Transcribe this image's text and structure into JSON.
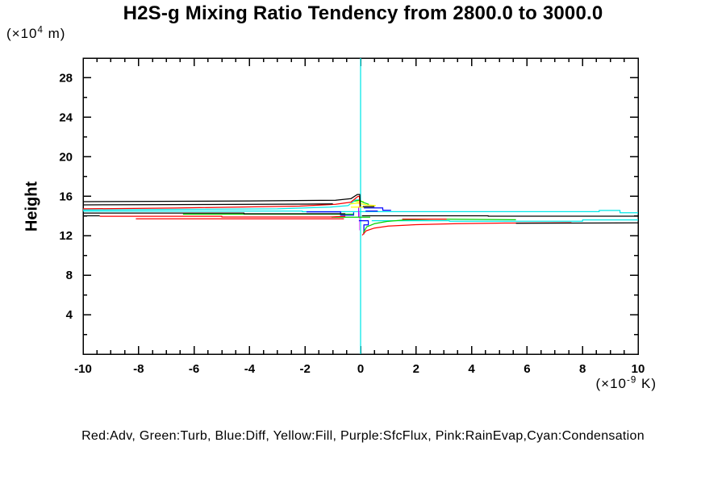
{
  "title": "H2S-g Mixing Ratio Tendency from 2800.0 to 3000.0",
  "y_unit": {
    "pre": "(×10",
    "sup": "4",
    "post": " m)"
  },
  "x_unit": {
    "pre": "(×10",
    "sup": "-9",
    "post": " K)"
  },
  "legend": "Red:Adv, Green:Turb, Blue:Diff, Yellow:Fill, Purple:SfcFlux, Pink:RainEvap,Cyan:Condensation",
  "chart_data": {
    "type": "line",
    "title": "H2S-g Mixing Ratio Tendency from 2800.0 to 3000.0",
    "x_axis": {
      "unit": "×10⁻⁹ K",
      "range": [
        -10,
        10
      ],
      "major_ticks": [
        -10,
        -8,
        -6,
        -4,
        -2,
        0,
        2,
        4,
        6,
        8,
        10
      ],
      "minor_step": 0.5
    },
    "y_axis": {
      "label": "Height",
      "unit": "×10⁴ m",
      "range": [
        0,
        30
      ],
      "major_ticks": [
        4,
        8,
        12,
        16,
        20,
        24,
        28
      ],
      "minor_step": 2
    },
    "grid": "off",
    "legend_position": "bottom",
    "zero_reference_x": 0,
    "series": [
      {
        "name": "condensation",
        "legend": "Cyan:Condensation",
        "color": "#00e8e8",
        "segments": [
          [
            [
              0,
              0
            ],
            [
              0,
              30
            ]
          ],
          [
            [
              -10,
              14.62
            ],
            [
              -3.0,
              14.72
            ],
            [
              -1.1,
              14.9
            ],
            [
              -0.45,
              15.05
            ],
            [
              -0.18,
              15.62
            ],
            [
              -0.05,
              15.62
            ]
          ],
          [
            [
              -10,
              14.5
            ],
            [
              -2.1,
              14.5
            ],
            [
              -2.1,
              14.44
            ],
            [
              8.6,
              14.44
            ],
            [
              8.6,
              14.56
            ],
            [
              9.35,
              14.56
            ],
            [
              9.35,
              14.33
            ],
            [
              10,
              14.33
            ]
          ],
          [
            [
              0.4,
              13.52
            ],
            [
              3.2,
              13.52
            ],
            [
              3.2,
              13.46
            ],
            [
              8.0,
              13.46
            ],
            [
              8.0,
              13.6
            ],
            [
              10,
              13.6
            ]
          ]
        ]
      },
      {
        "name": "rainevap",
        "legend": "Pink:RainEvap",
        "color": "#ff80ff",
        "segments": [
          [
            [
              -0.04,
              14.35
            ],
            [
              -0.04,
              12.55
            ]
          ]
        ]
      },
      {
        "name": "sfcflux",
        "legend": "Purple:SfcFlux",
        "color": "#aa00ff",
        "segments": [
          [
            [
              -0.07,
              14.92
            ],
            [
              -0.07,
              13.9
            ]
          ]
        ]
      },
      {
        "name": "fill",
        "legend": "Yellow:Fill",
        "color": "#ffff00",
        "segments": [
          [
            [
              -0.38,
              15.22
            ],
            [
              -0.1,
              15.3
            ],
            [
              0.22,
              15.12
            ],
            [
              0.55,
              15.05
            ]
          ],
          [
            [
              -0.35,
              14.9
            ],
            [
              0.45,
              14.9
            ]
          ],
          [
            [
              -0.15,
              15.45
            ],
            [
              0.12,
              15.45
            ]
          ]
        ]
      },
      {
        "name": "diff",
        "legend": "Blue:Diff",
        "color": "#0000ff",
        "segments": [
          [
            [
              -1.95,
              14.42
            ],
            [
              -0.72,
              14.42
            ],
            [
              -0.72,
              14.08
            ],
            [
              -0.25,
              14.08
            ],
            [
              -0.25,
              14.36
            ]
          ],
          [
            [
              0.12,
              14.82
            ],
            [
              0.8,
              14.82
            ],
            [
              0.8,
              14.58
            ],
            [
              1.1,
              14.58
            ]
          ],
          [
            [
              0.18,
              14.5
            ],
            [
              0.62,
              14.5
            ]
          ],
          [
            [
              -0.06,
              13.52
            ],
            [
              0.28,
              13.52
            ],
            [
              0.28,
              13.1
            ],
            [
              0.12,
              13.1
            ],
            [
              0.12,
              12.15
            ]
          ]
        ]
      },
      {
        "name": "turb",
        "legend": "Green:Turb",
        "color": "#00d400",
        "segments": [
          [
            [
              -6.4,
              14.18
            ],
            [
              -0.25,
              14.18
            ]
          ],
          [
            [
              -1.05,
              13.87
            ],
            [
              0.35,
              13.87
            ]
          ],
          [
            [
              -0.22,
              15.5
            ],
            [
              -0.05,
              15.6
            ],
            [
              0.12,
              15.35
            ],
            [
              0.3,
              15.18
            ]
          ],
          [
            [
              0.1,
              12.3
            ],
            [
              0.22,
              12.9
            ],
            [
              0.5,
              13.22
            ],
            [
              0.95,
              13.45
            ],
            [
              1.6,
              13.6
            ],
            [
              2.8,
              13.68
            ],
            [
              5.6,
              13.62
            ]
          ]
        ]
      },
      {
        "name": "adv",
        "legend": "Red:Adv",
        "color": "#ff0000",
        "segments": [
          [
            [
              -10,
              14.72
            ],
            [
              -6.7,
              14.8
            ],
            [
              -2.2,
              15.0
            ],
            [
              -0.9,
              15.18
            ],
            [
              -0.35,
              15.4
            ],
            [
              -0.1,
              15.98
            ],
            [
              -0.04,
              15.98
            ],
            [
              -0.02,
              14.9
            ]
          ],
          [
            [
              -9.4,
              13.97
            ],
            [
              -5.0,
              13.97
            ],
            [
              -5.0,
              13.9
            ],
            [
              -1.1,
              13.9
            ],
            [
              -0.55,
              13.97
            ]
          ],
          [
            [
              -8.1,
              13.72
            ],
            [
              -0.6,
              13.72
            ]
          ],
          [
            [
              0.06,
              12.05
            ],
            [
              0.2,
              12.5
            ],
            [
              0.5,
              12.78
            ],
            [
              1.0,
              12.97
            ],
            [
              2.0,
              13.12
            ],
            [
              3.5,
              13.22
            ],
            [
              5.2,
              13.28
            ],
            [
              7.6,
              13.32
            ]
          ],
          [
            [
              1.5,
              13.68
            ],
            [
              3.1,
              13.68
            ]
          ]
        ]
      },
      {
        "name": "total-unlabeled",
        "legend": "",
        "color": "#000000",
        "segments": [
          [
            [
              -10,
              15.45
            ],
            [
              -4,
              15.52
            ],
            [
              -0.9,
              15.6
            ],
            [
              -0.35,
              15.75
            ],
            [
              -0.12,
              16.18
            ],
            [
              -0.03,
              16.18
            ],
            [
              -0.01,
              14.98
            ]
          ],
          [
            [
              -10,
              15.12
            ],
            [
              -5.5,
              15.16
            ],
            [
              -1.0,
              15.22
            ]
          ],
          [
            [
              -10,
              14.3
            ],
            [
              -4.2,
              14.3
            ],
            [
              -4.2,
              14.22
            ],
            [
              -0.55,
              14.22
            ]
          ],
          [
            [
              -10,
              14.02
            ],
            [
              -9.4,
              14.02
            ]
          ],
          [
            [
              0.05,
              14.02
            ],
            [
              4.6,
              14.02
            ],
            [
              4.6,
              13.98
            ],
            [
              10,
              13.98
            ]
          ],
          [
            [
              5.6,
              13.27
            ],
            [
              10,
              13.3
            ]
          ],
          [
            [
              0.08,
              14.95
            ],
            [
              0.5,
              14.95
            ]
          ]
        ]
      }
    ]
  }
}
